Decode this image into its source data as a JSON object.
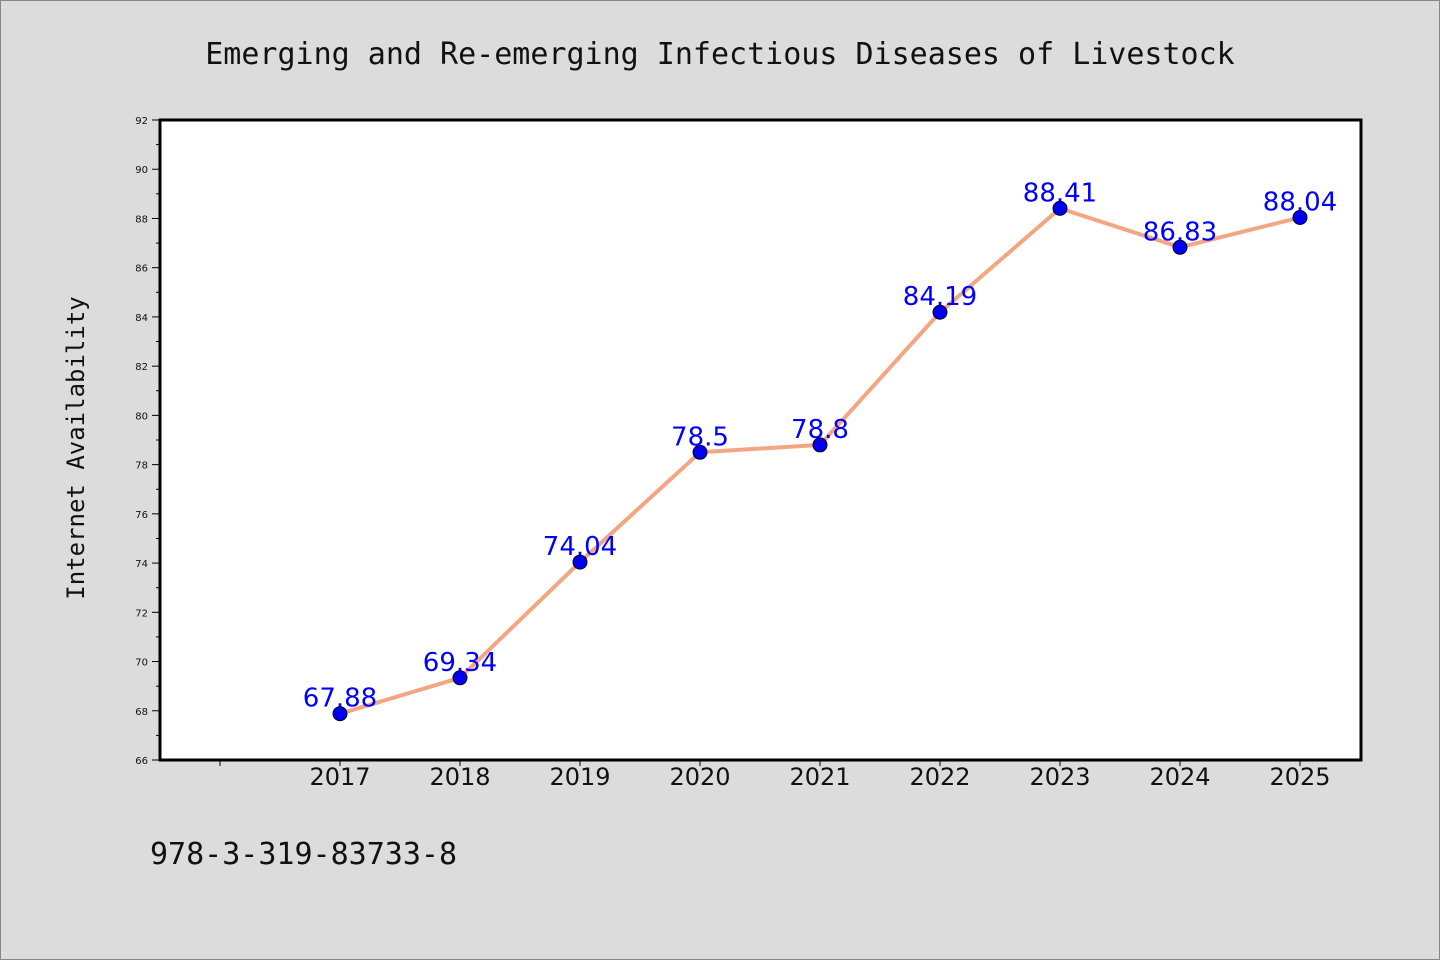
{
  "chart_data": {
    "type": "line",
    "title": "Emerging and Re-emerging Infectious Diseases of Livestock",
    "xlabel": "",
    "ylabel": "Internet Availability",
    "categories": [
      "2017",
      "2018",
      "2019",
      "2020",
      "2021",
      "2022",
      "2023",
      "2024",
      "2025"
    ],
    "series": [
      {
        "values": [
          67.88,
          69.34,
          74.04,
          78.5,
          78.8,
          84.19,
          88.41,
          86.83,
          88.04
        ],
        "labels": [
          "67.88",
          "69.34",
          "74.04",
          "78.5",
          "78.8",
          "84.19",
          "88.41",
          "86.83",
          "88.04"
        ],
        "line_color": "#f4a582",
        "marker_color": "#0000ee",
        "label_color": "#0000ff"
      }
    ],
    "ylim": [
      66,
      92
    ],
    "yticks": [
      "66",
      "68",
      "70",
      "72",
      "74",
      "76",
      "78",
      "80",
      "82",
      "84",
      "86",
      "88",
      "90",
      "92"
    ],
    "grid": false,
    "legend": "none"
  },
  "footer": {
    "isbn": "978-3-319-83733-8"
  },
  "colors": {
    "background": "#dcdcdc",
    "plot_background": "#ffffff",
    "axis": "#000000"
  }
}
